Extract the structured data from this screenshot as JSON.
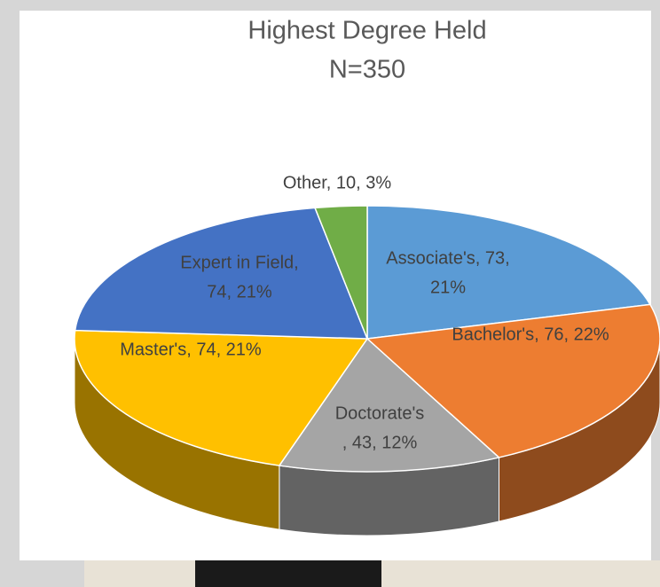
{
  "chart_data": {
    "type": "pie",
    "title": "Highest Degree Held",
    "subtitle": "N=350",
    "values": [
      73,
      76,
      43,
      74,
      74,
      10
    ],
    "value_labels": [
      [
        "Associate's, 73,",
        "21%"
      ],
      [
        "Bachelor's, 76, 22%"
      ],
      [
        "Doctorate's",
        ", 43, 12%"
      ],
      [
        "Master's, 74, 21%"
      ],
      [
        "Expert in Field,",
        "74, 21%"
      ],
      [
        "Other, 10, 3%"
      ]
    ],
    "colors": [
      "#5b9bd5",
      "#ed7d31",
      "#a5a5a5",
      "#ffc000",
      "#4472c4",
      "#70ad47"
    ]
  }
}
